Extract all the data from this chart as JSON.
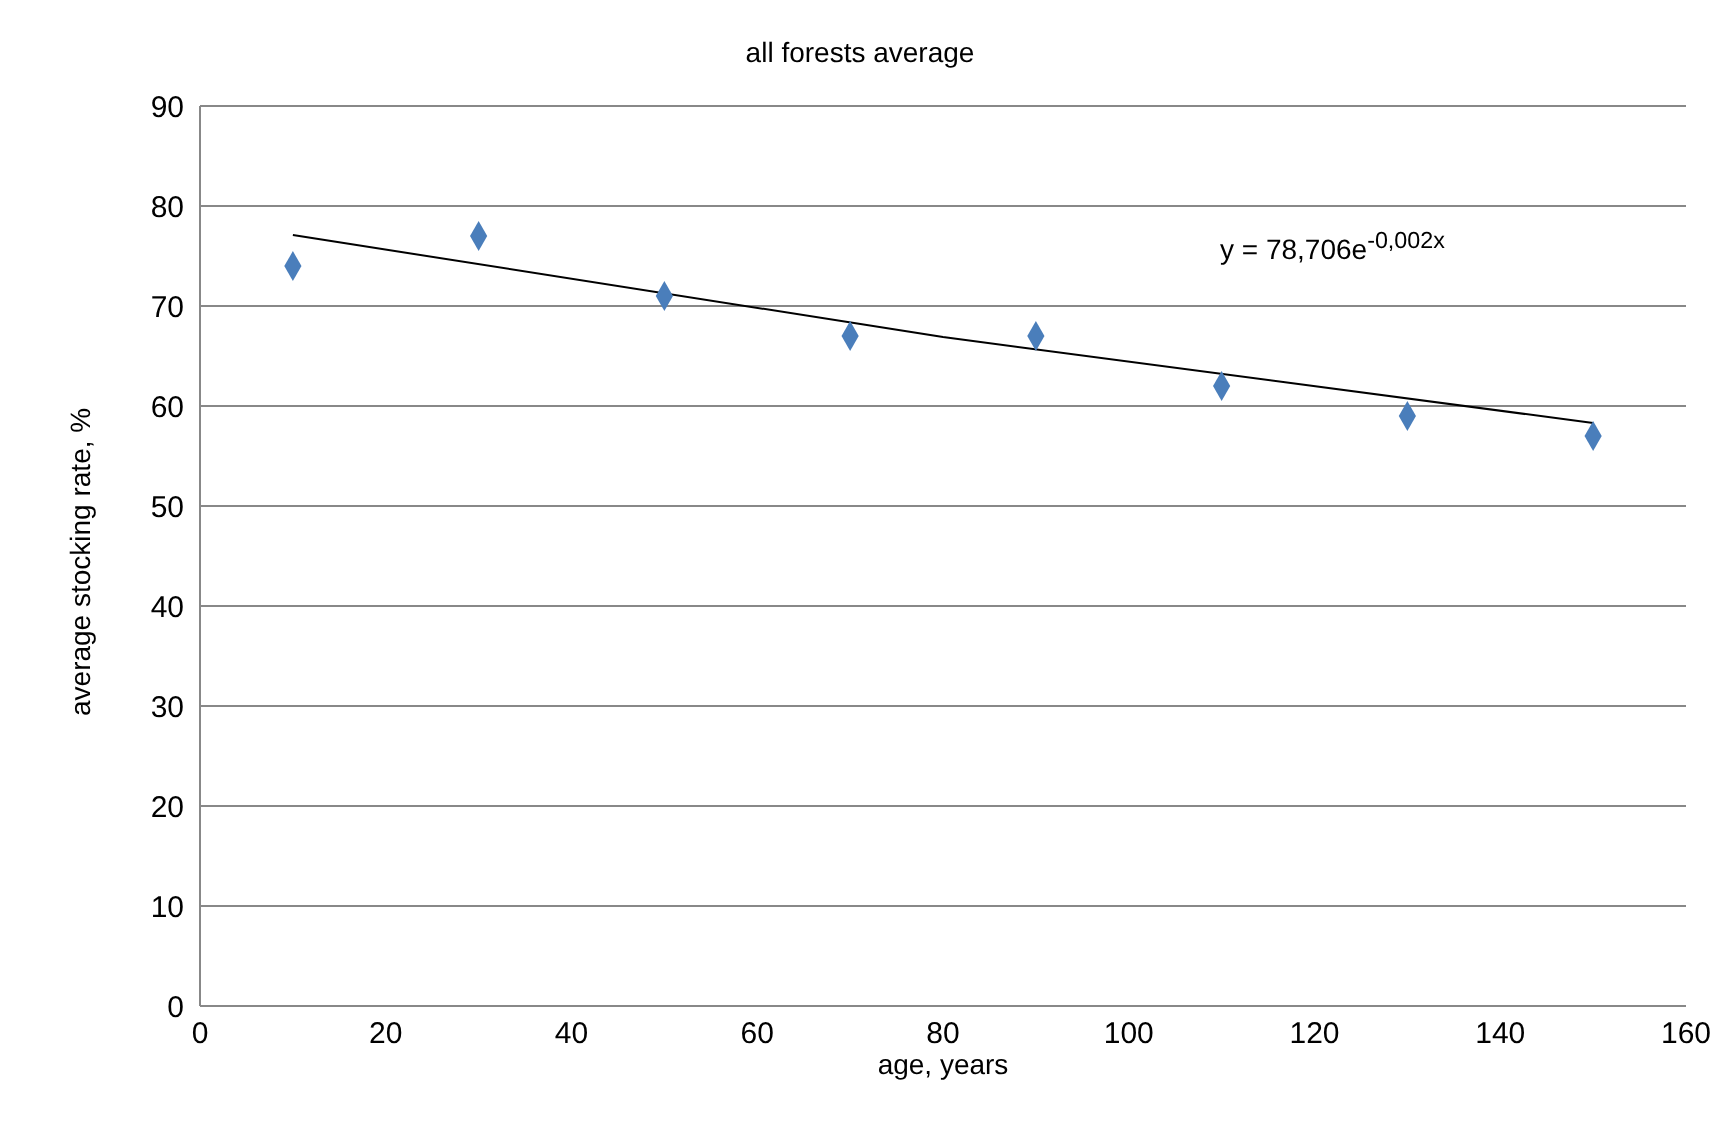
{
  "chart_data": {
    "type": "scatter",
    "title": "all forests average",
    "xlabel": "age, years",
    "ylabel": "average stocking rate, %",
    "x": [
      10,
      30,
      50,
      70,
      90,
      110,
      130,
      150
    ],
    "series": [
      {
        "color": "#4a7ebb",
        "marker": "diamond",
        "values": [
          74,
          77,
          71,
          67,
          67,
          62,
          59,
          57
        ]
      },
      {
        "type": "line",
        "color": "#000000",
        "marker": "none",
        "x": [
          10,
          80,
          150
        ],
        "values": [
          77.1,
          66.9,
          58.3
        ]
      }
    ],
    "annotations": [
      "y = 78,706e$^{-0,002x}$"
    ],
    "xlim": [
      0,
      160
    ],
    "xticks": [
      0,
      20,
      40,
      60,
      80,
      100,
      120,
      140,
      160
    ],
    "ylim": [
      0,
      90
    ],
    "yticks": [
      0,
      10,
      20,
      30,
      40,
      50,
      60,
      70,
      80,
      90
    ],
    "grid": "y",
    "legend": false
  }
}
